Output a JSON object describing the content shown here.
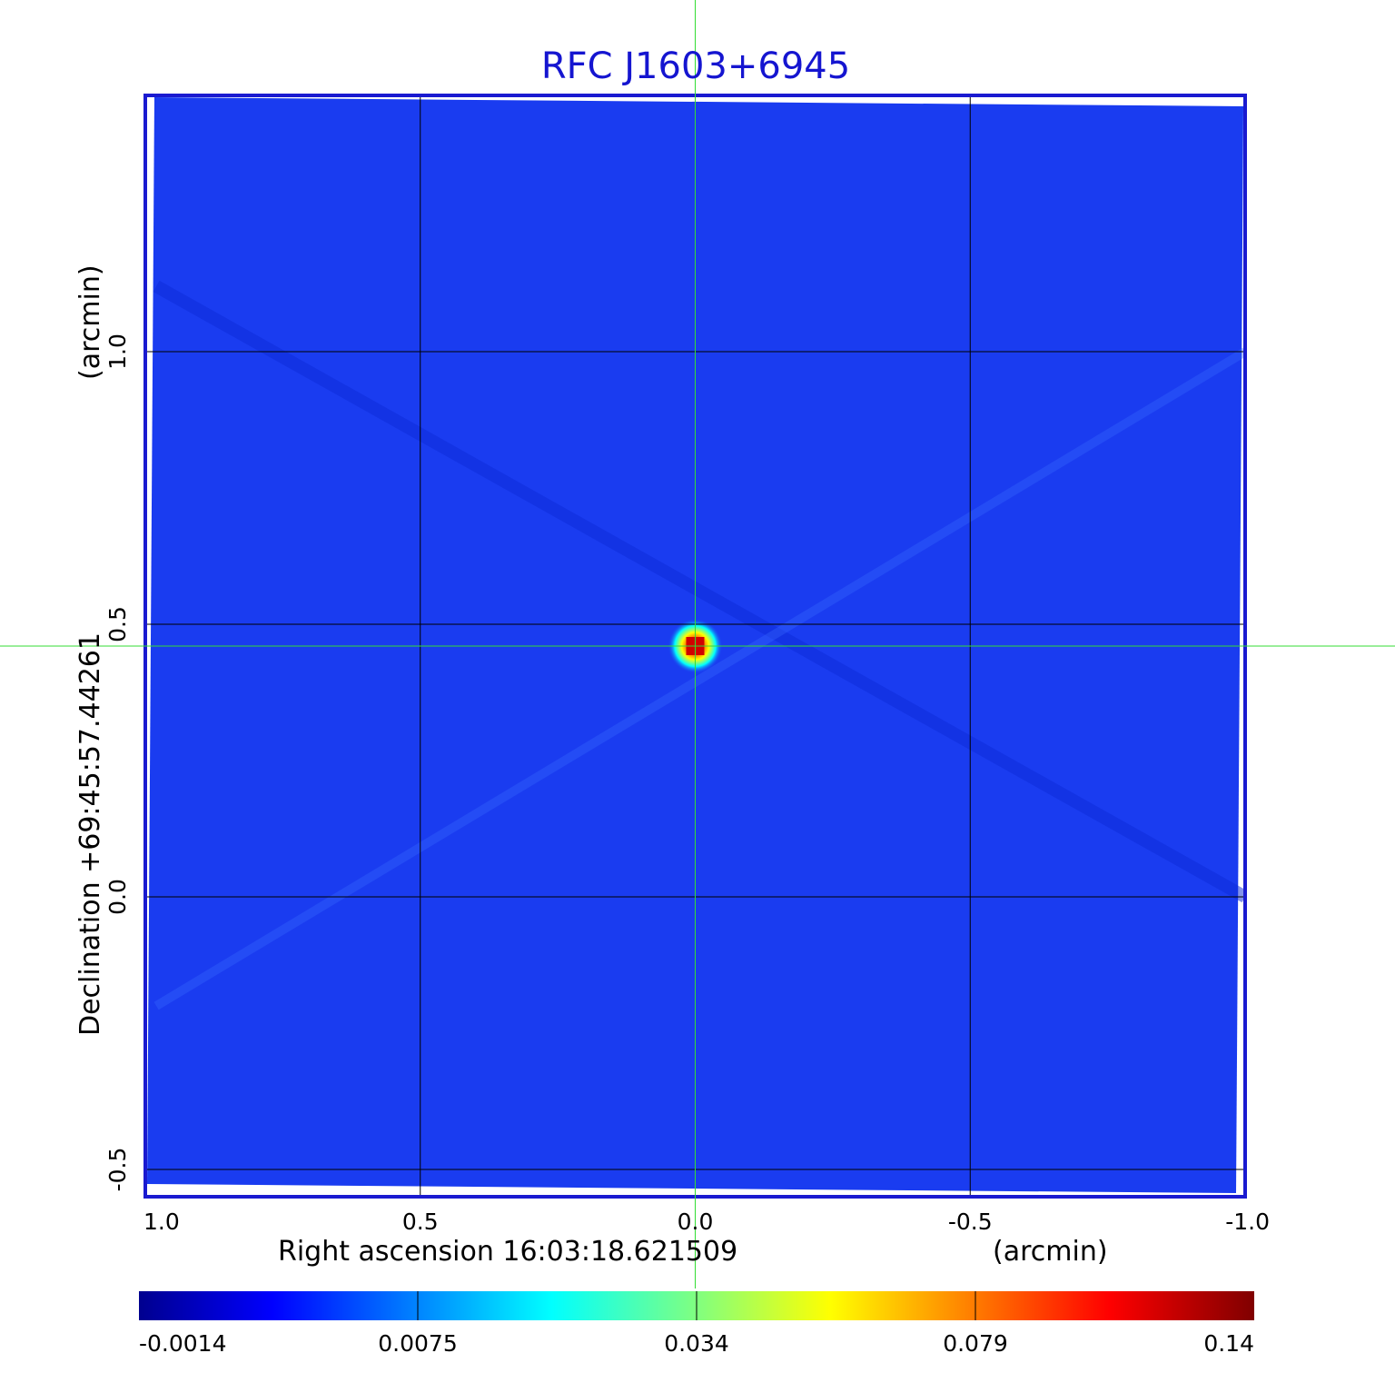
{
  "chart_data": {
    "type": "heatmap",
    "title": "RFC J1603+6945",
    "x_axis": {
      "label": "Right ascension  16:03:18.621509",
      "unit_label": "(arcmin)",
      "range": [
        1.0,
        -1.0
      ],
      "ticks": [
        1.0,
        0.5,
        0.0,
        -0.5,
        -1.0
      ],
      "tick_labels": [
        "1.0",
        "0.5",
        "0.0",
        "-0.5",
        "-1.0"
      ]
    },
    "y_axis": {
      "label": "Declination  +69:45:57.44261",
      "unit_label": "(arcmin)",
      "range": [
        -0.55,
        1.47
      ],
      "ticks": [
        -0.5,
        0.0,
        0.5,
        1.0
      ],
      "tick_labels": [
        "-0.5",
        "0.0",
        "0.5",
        "1.0"
      ]
    },
    "grid": true,
    "crosshair": {
      "x": 0.0,
      "y": 0.46
    },
    "source_peak": {
      "x": 0.0,
      "y": 0.46,
      "value": 0.14
    },
    "colorbar": {
      "position": "bottom",
      "tick_labels": [
        "-0.0014",
        "0.0075",
        "0.034",
        "0.079",
        "0.14"
      ],
      "colormap": "jet"
    },
    "colors": {
      "background_field": "#1a3cf0",
      "frame": "#1a1ad0",
      "crosshair": "#33dd33",
      "grid": "#000000",
      "title": "#1515d0"
    }
  }
}
